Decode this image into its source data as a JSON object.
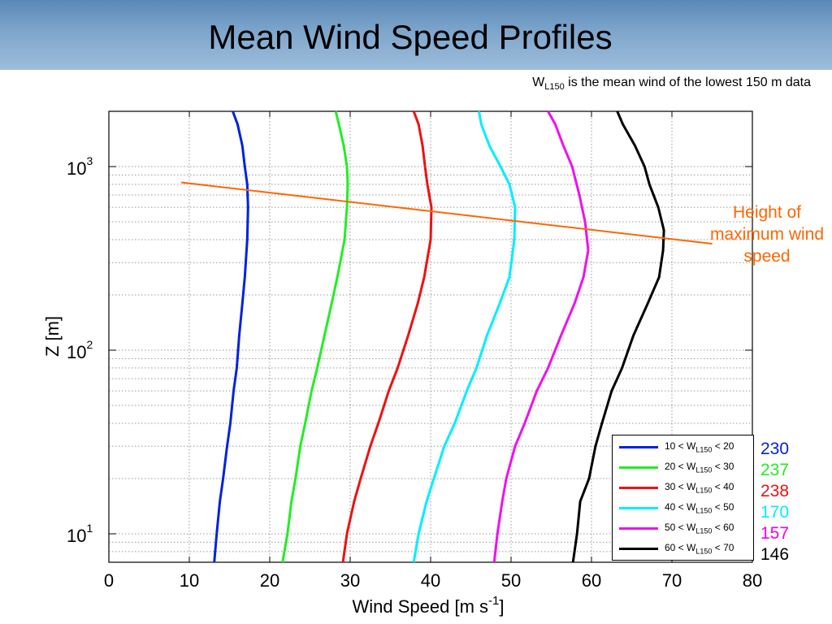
{
  "slide": {
    "title": "Mean Wind Speed Profiles",
    "subtitle_w": "W",
    "subtitle_sub": "L150",
    "subtitle_rest": " is the mean wind of the lowest 150 m data",
    "annotation": "Height of maximum wind speed",
    "annotation_color": "#ff6600",
    "title_bar_color": "#7ea6cc"
  },
  "chart_data": {
    "type": "line",
    "xlabel": "Wind Speed [m s",
    "xlabel_sup": "-1",
    "xlabel_end": "]",
    "ylabel": "Z [m]",
    "xlim": [
      0,
      80
    ],
    "ylim": [
      7,
      2000
    ],
    "yscale": "log",
    "grid": true,
    "legend_position": "bottom-right",
    "x_ticks": [
      0,
      10,
      20,
      30,
      40,
      50,
      60,
      70,
      80
    ],
    "y_ticks": [
      {
        "value": 10,
        "base": "10",
        "exp": "1"
      },
      {
        "value": 100,
        "base": "10",
        "exp": "2"
      },
      {
        "value": 1000,
        "base": "10",
        "exp": "3"
      }
    ],
    "series": [
      {
        "name": "10 < W",
        "sub": "L150",
        "tail": " < 20",
        "count": "230",
        "color": "#0022dd",
        "points": [
          [
            13.1,
            7
          ],
          [
            13.4,
            10
          ],
          [
            13.8,
            15
          ],
          [
            14.2,
            20
          ],
          [
            14.7,
            30
          ],
          [
            15.1,
            40
          ],
          [
            15.5,
            60
          ],
          [
            15.9,
            80
          ],
          [
            16.2,
            120
          ],
          [
            16.6,
            180
          ],
          [
            16.9,
            250
          ],
          [
            17.2,
            400
          ],
          [
            17.3,
            600
          ],
          [
            17.2,
            800
          ],
          [
            16.9,
            1000
          ],
          [
            16.6,
            1300
          ],
          [
            16.0,
            1700
          ],
          [
            15.4,
            2000
          ]
        ]
      },
      {
        "name": "20 < W",
        "sub": "L150",
        "tail": " < 30",
        "count": "237",
        "color": "#22ee22",
        "points": [
          [
            21.6,
            7
          ],
          [
            22.2,
            10
          ],
          [
            22.7,
            15
          ],
          [
            23.2,
            20
          ],
          [
            23.8,
            30
          ],
          [
            24.4,
            40
          ],
          [
            25.2,
            60
          ],
          [
            25.9,
            80
          ],
          [
            26.8,
            120
          ],
          [
            27.7,
            180
          ],
          [
            28.4,
            250
          ],
          [
            29.3,
            400
          ],
          [
            29.6,
            600
          ],
          [
            29.7,
            800
          ],
          [
            29.6,
            1000
          ],
          [
            29.2,
            1300
          ],
          [
            28.6,
            1700
          ],
          [
            28.2,
            2000
          ]
        ]
      },
      {
        "name": "30 < W",
        "sub": "L150",
        "tail": " < 40",
        "count": "238",
        "color": "#ee1111",
        "points": [
          [
            29.1,
            7
          ],
          [
            29.6,
            10
          ],
          [
            30.5,
            15
          ],
          [
            31.3,
            20
          ],
          [
            32.5,
            30
          ],
          [
            33.5,
            40
          ],
          [
            34.8,
            60
          ],
          [
            35.9,
            80
          ],
          [
            37.2,
            120
          ],
          [
            38.4,
            180
          ],
          [
            39.2,
            250
          ],
          [
            40.0,
            400
          ],
          [
            40.1,
            600
          ],
          [
            39.6,
            800
          ],
          [
            39.3,
            1000
          ],
          [
            39.0,
            1300
          ],
          [
            38.5,
            1700
          ],
          [
            37.9,
            2000
          ]
        ]
      },
      {
        "name": "40 < W",
        "sub": "L150",
        "tail": " < 50",
        "count": "170",
        "color": "#00eeff",
        "points": [
          [
            37.9,
            7
          ],
          [
            38.5,
            10
          ],
          [
            39.5,
            15
          ],
          [
            40.4,
            20
          ],
          [
            41.7,
            30
          ],
          [
            43.0,
            40
          ],
          [
            44.5,
            60
          ],
          [
            45.7,
            80
          ],
          [
            47.0,
            120
          ],
          [
            48.6,
            180
          ],
          [
            49.8,
            250
          ],
          [
            50.4,
            400
          ],
          [
            50.5,
            600
          ],
          [
            49.8,
            800
          ],
          [
            48.7,
            1000
          ],
          [
            47.3,
            1300
          ],
          [
            46.3,
            1700
          ],
          [
            46.0,
            2000
          ]
        ]
      },
      {
        "name": "50 < W",
        "sub": "L150",
        "tail": " < 60",
        "count": "157",
        "color": "#ee11ee",
        "points": [
          [
            47.9,
            7
          ],
          [
            48.3,
            10
          ],
          [
            48.9,
            15
          ],
          [
            49.4,
            20
          ],
          [
            50.5,
            30
          ],
          [
            51.7,
            40
          ],
          [
            53.2,
            60
          ],
          [
            54.6,
            80
          ],
          [
            56.2,
            120
          ],
          [
            57.9,
            180
          ],
          [
            59.0,
            250
          ],
          [
            59.6,
            350
          ],
          [
            59.2,
            500
          ],
          [
            58.5,
            700
          ],
          [
            57.6,
            1000
          ],
          [
            56.5,
            1300
          ],
          [
            55.5,
            1700
          ],
          [
            54.6,
            2000
          ]
        ]
      },
      {
        "name": "60 < W",
        "sub": "L150",
        "tail": " < 70",
        "count": "146",
        "color": "#000000",
        "points": [
          [
            57.7,
            7
          ],
          [
            58.2,
            10
          ],
          [
            58.6,
            15
          ],
          [
            59.7,
            20
          ],
          [
            60.5,
            30
          ],
          [
            61.3,
            40
          ],
          [
            62.5,
            60
          ],
          [
            63.8,
            80
          ],
          [
            65.2,
            120
          ],
          [
            67.0,
            180
          ],
          [
            68.4,
            250
          ],
          [
            68.9,
            350
          ],
          [
            69.0,
            450
          ],
          [
            68.3,
            600
          ],
          [
            67.2,
            800
          ],
          [
            66.6,
            1000
          ],
          [
            65.4,
            1300
          ],
          [
            63.9,
            1700
          ],
          [
            63.2,
            2000
          ]
        ]
      }
    ],
    "annotation_line": {
      "color": "#ff6600",
      "points": [
        [
          9,
          820
        ],
        [
          75,
          380
        ]
      ]
    }
  }
}
